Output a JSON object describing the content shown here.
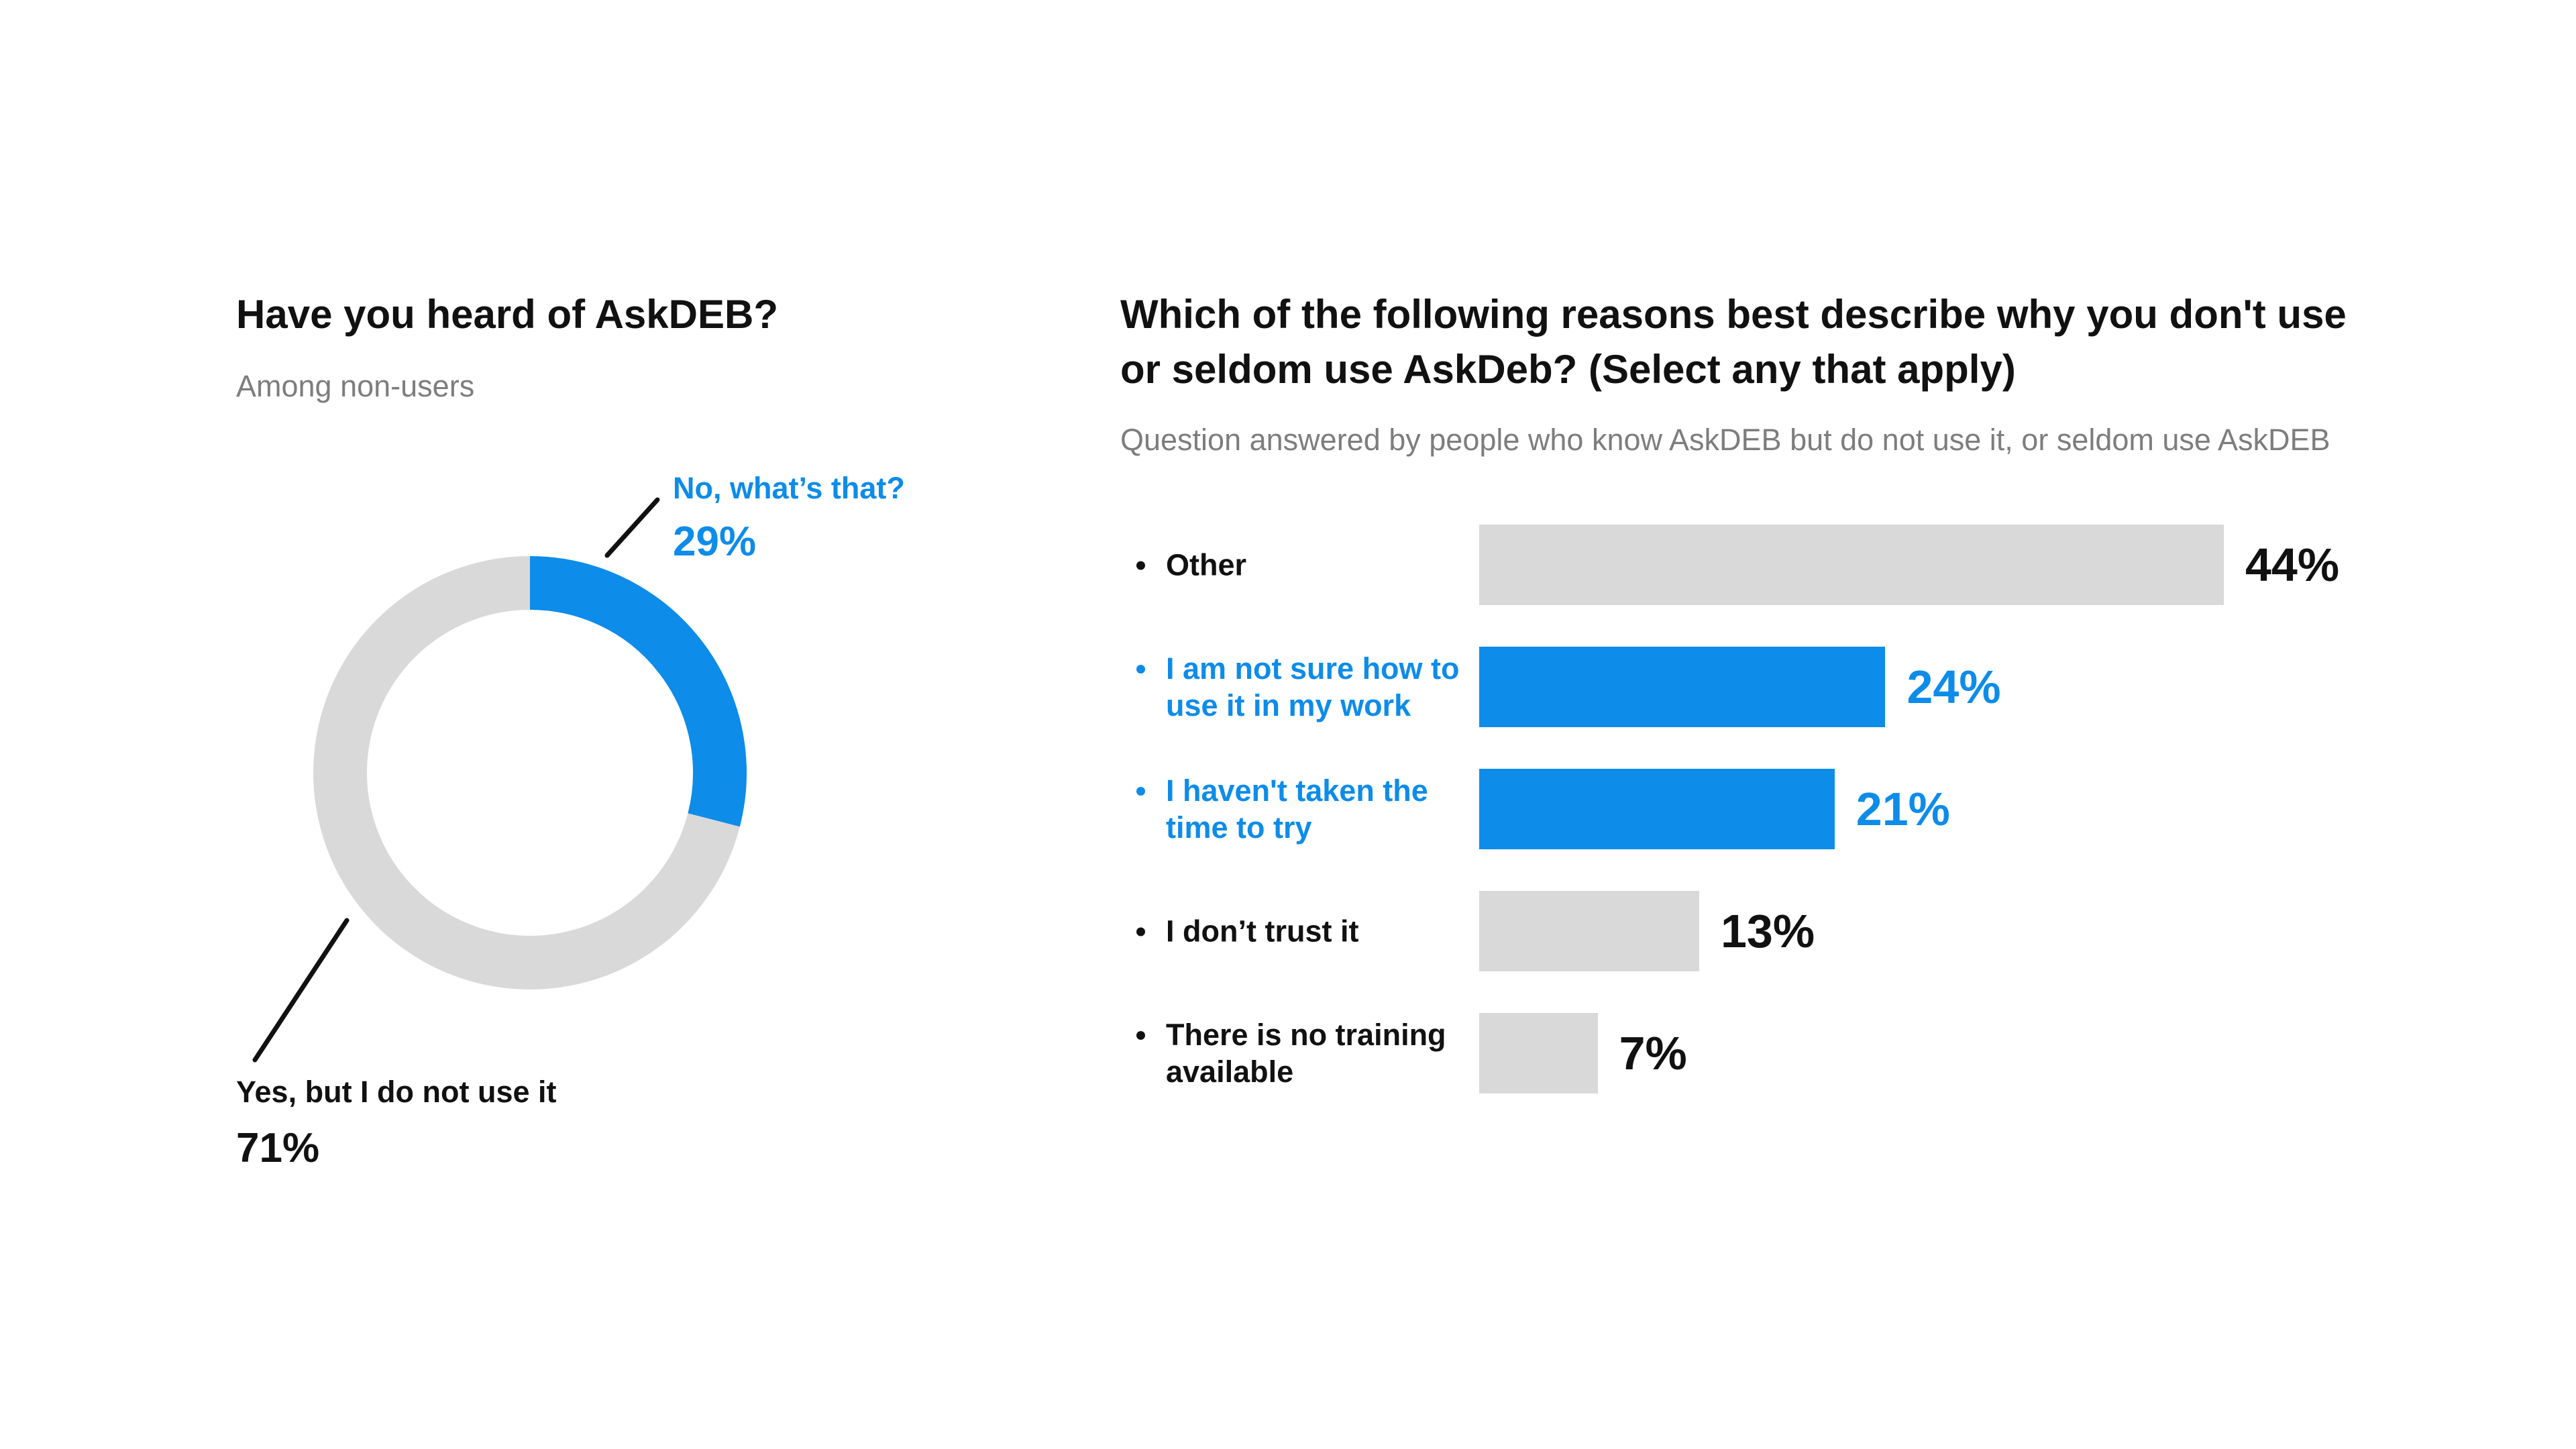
{
  "colors": {
    "highlight": "#0d8ce9",
    "neutral": "#d9d9d9",
    "text": "#111111"
  },
  "chart_data": [
    {
      "type": "pie",
      "title": "Have you heard of AskDEB?",
      "subtitle": "Among non-users",
      "slices": [
        {
          "label": "No, what’s that?",
          "value": 29,
          "display": "29%",
          "highlight": true
        },
        {
          "label": "Yes, but I do not use it",
          "value": 71,
          "display": "71%",
          "highlight": false
        }
      ]
    },
    {
      "type": "bar",
      "title": "Which of the following reasons best describe why you don't use or seldom use AskDeb? (Select any that apply)",
      "subtitle": "Question answered by people who know AskDEB but do not use it, or seldom use AskDEB",
      "categories": [
        "Other",
        "I am not sure how to use it in my work",
        "I haven't taken the time to try",
        "I don’t trust it",
        "There is no training available"
      ],
      "values": [
        44,
        24,
        21,
        13,
        7
      ],
      "display": [
        "44%",
        "24%",
        "21%",
        "13%",
        "7%"
      ],
      "highlight": [
        false,
        true,
        true,
        false,
        false
      ],
      "xlim": [
        0,
        44
      ]
    }
  ]
}
